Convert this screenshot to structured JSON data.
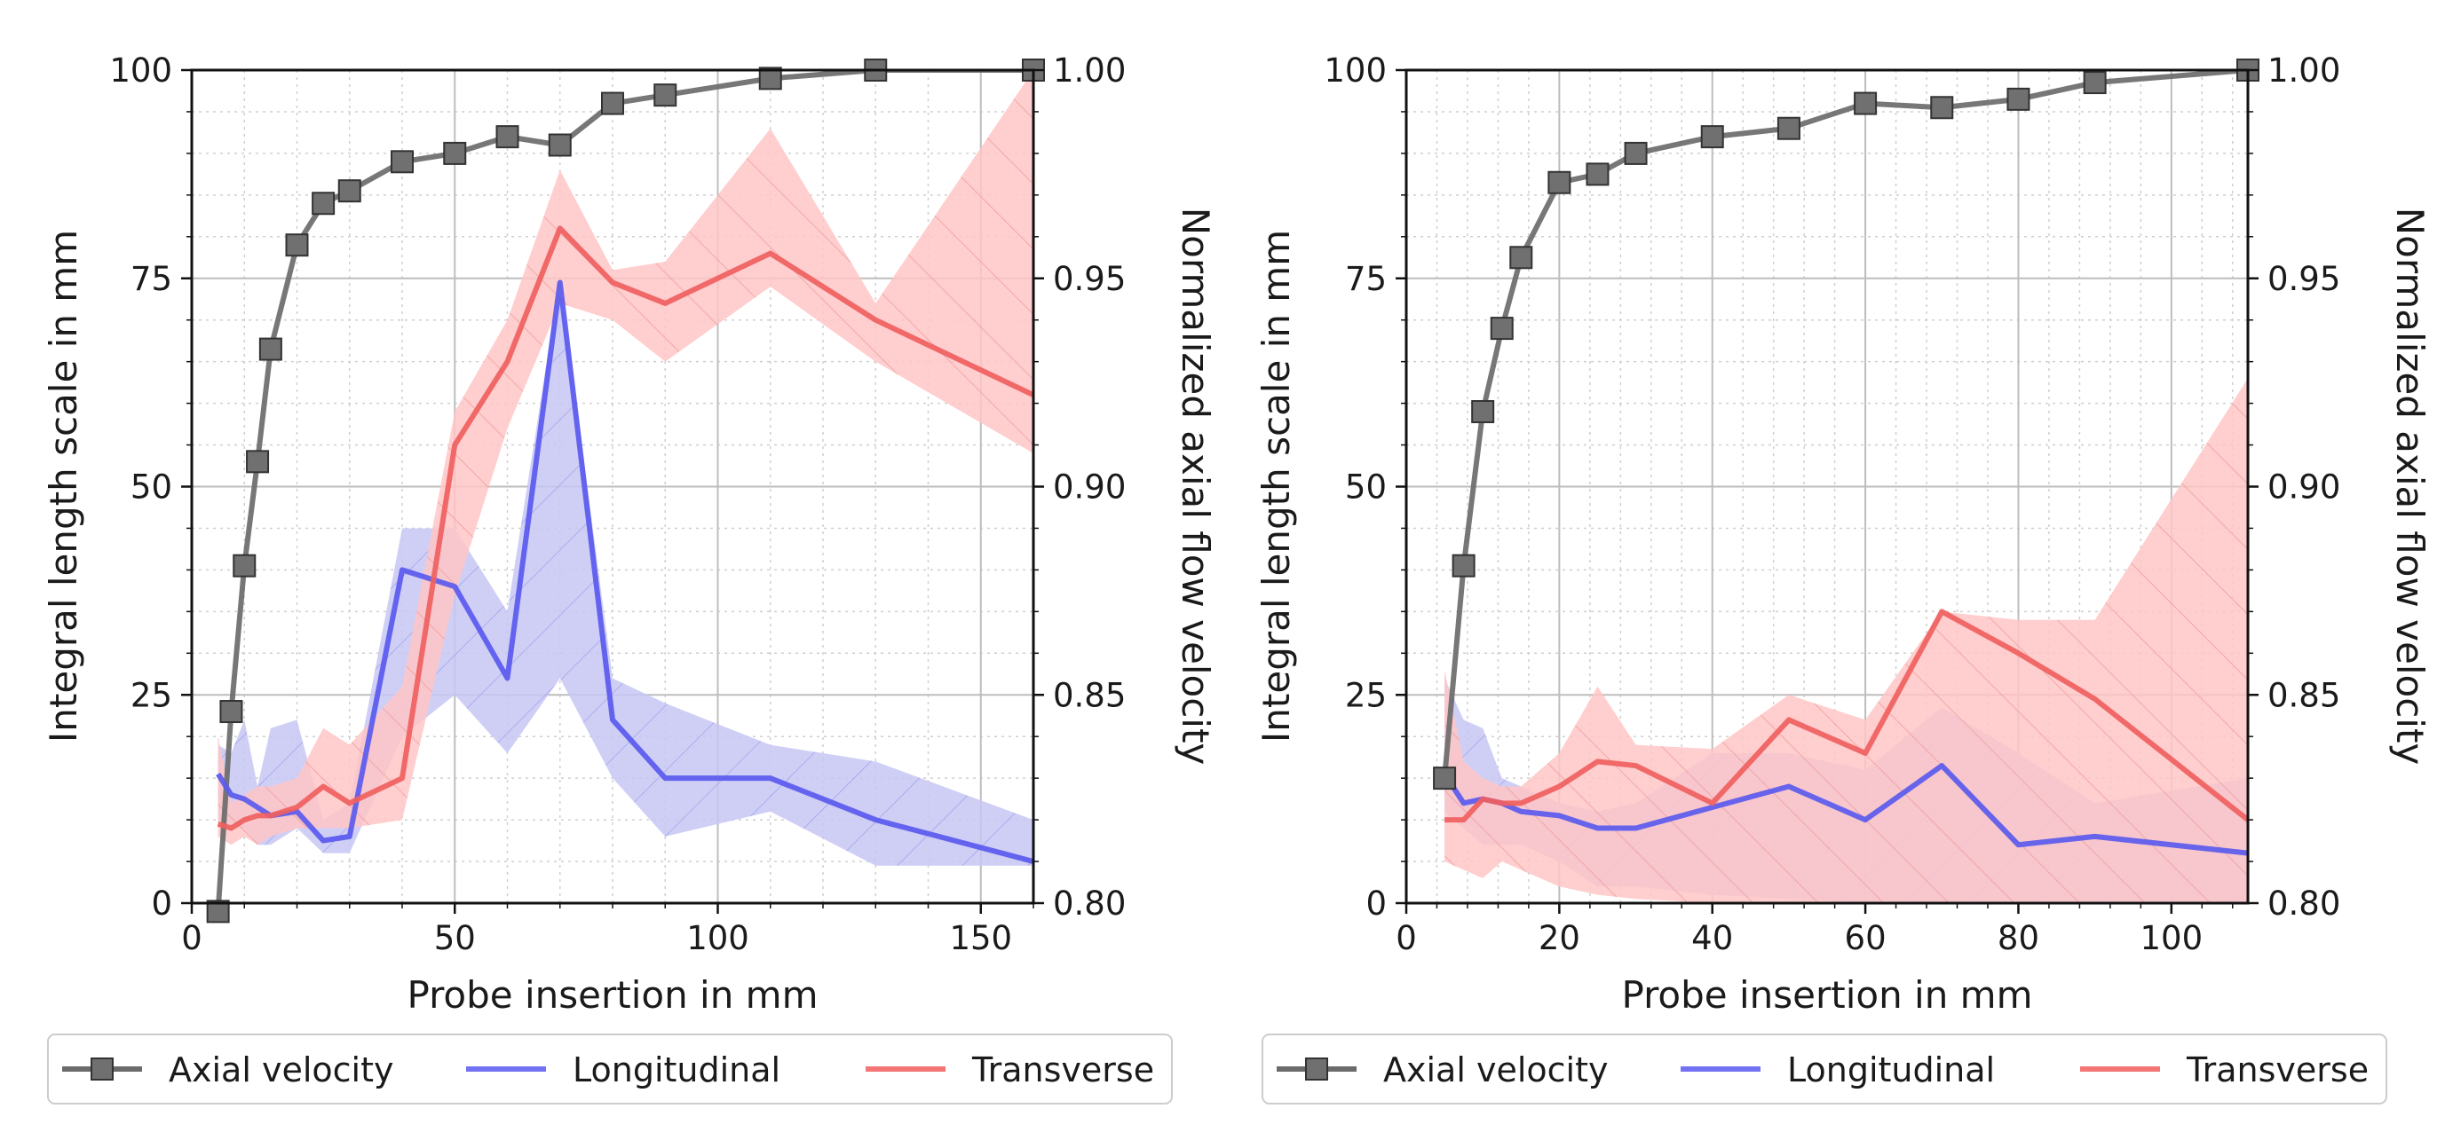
{
  "chart_data": [
    {
      "type": "line",
      "id": "left",
      "xlabel": "Probe insertion in mm",
      "ylabel": "Integral length scale in mm",
      "y2label": "Normalized axial flow velocity",
      "xlim": [
        0,
        160
      ],
      "ylim": [
        0,
        100
      ],
      "y2lim": [
        0.8,
        1.0
      ],
      "xticks": [
        "0",
        "50",
        "100",
        "150"
      ],
      "xtick_values": [
        0,
        50,
        100,
        150
      ],
      "yticks": [
        "0",
        "25",
        "50",
        "75",
        "100"
      ],
      "ytick_values": [
        0,
        25,
        50,
        75,
        100
      ],
      "y2ticks": [
        "0.80",
        "0.85",
        "0.90",
        "0.95",
        "1.00"
      ],
      "y2tick_values": [
        0.8,
        0.85,
        0.9,
        0.95,
        1.0
      ],
      "grid": true,
      "legend": {
        "placement": "bottom",
        "entries": [
          "Axial velocity",
          "Longitudinal",
          "Transverse"
        ]
      },
      "series": [
        {
          "name": "Axial velocity",
          "axis": "right",
          "color": "#6b6b6b",
          "marker": "square",
          "x": [
            5,
            7.5,
            10,
            12.5,
            15,
            20,
            25,
            30,
            40,
            50,
            60,
            70,
            80,
            90,
            110,
            130,
            160
          ],
          "y": [
            0.798,
            0.846,
            0.881,
            0.906,
            0.933,
            0.958,
            0.968,
            0.971,
            0.978,
            0.98,
            0.984,
            0.982,
            0.992,
            0.994,
            0.998,
            1.0,
            1.0
          ]
        },
        {
          "name": "Longitudinal",
          "axis": "left",
          "color": "#5a5aee",
          "band_color": "#c7c7f5",
          "x": [
            5,
            7.5,
            10,
            12.5,
            15,
            20,
            25,
            30,
            40,
            50,
            60,
            70,
            80,
            90,
            110,
            130,
            160
          ],
          "y": [
            15.5,
            13,
            12.5,
            11.5,
            10.5,
            11,
            7.5,
            8,
            40,
            38,
            27,
            74.5,
            22,
            15,
            15,
            10,
            5
          ],
          "lower": [
            10,
            9,
            9,
            7,
            7,
            9,
            6,
            6,
            20,
            25,
            18,
            27,
            15,
            8,
            11,
            4.5,
            4.5
          ],
          "upper": [
            19,
            18,
            22,
            14,
            21,
            22,
            10,
            12,
            45,
            45,
            35,
            75,
            27,
            24,
            19,
            17,
            10
          ]
        },
        {
          "name": "Transverse",
          "axis": "left",
          "color": "#f06060",
          "band_color": "#ffc5c5",
          "x": [
            5,
            7.5,
            10,
            12.5,
            15,
            20,
            25,
            30,
            40,
            50,
            60,
            70,
            80,
            90,
            110,
            130,
            160
          ],
          "y": [
            9.5,
            9,
            10,
            10.5,
            10.5,
            11.5,
            14,
            12,
            15,
            55,
            65,
            81,
            74.5,
            72,
            78,
            70,
            61
          ],
          "lower": [
            8,
            7,
            8,
            7,
            8,
            9,
            9,
            9,
            10,
            37,
            57,
            72,
            70,
            65,
            74,
            65,
            54
          ],
          "upper": [
            20,
            12,
            13,
            14,
            14,
            15,
            21,
            19,
            26,
            59,
            70,
            88,
            76,
            77,
            93,
            72,
            100
          ]
        }
      ]
    },
    {
      "type": "line",
      "id": "right",
      "xlabel": "Probe insertion in mm",
      "ylabel": "Integral length scale in mm",
      "y2label": "Normalized axial flow velocity",
      "xlim": [
        0,
        110
      ],
      "ylim": [
        0,
        100
      ],
      "y2lim": [
        0.8,
        1.0
      ],
      "xticks": [
        "0",
        "20",
        "40",
        "60",
        "80",
        "100"
      ],
      "xtick_values": [
        0,
        20,
        40,
        60,
        80,
        100
      ],
      "yticks": [
        "0",
        "25",
        "50",
        "75",
        "100"
      ],
      "ytick_values": [
        0,
        25,
        50,
        75,
        100
      ],
      "y2ticks": [
        "0.80",
        "0.85",
        "0.90",
        "0.95",
        "1.00"
      ],
      "y2tick_values": [
        0.8,
        0.85,
        0.9,
        0.95,
        1.0
      ],
      "grid": true,
      "legend": {
        "placement": "bottom",
        "entries": [
          "Axial velocity",
          "Longitudinal",
          "Transverse"
        ]
      },
      "series": [
        {
          "name": "Axial velocity",
          "axis": "right",
          "color": "#6b6b6b",
          "marker": "square",
          "x": [
            5,
            7.5,
            10,
            12.5,
            15,
            20,
            25,
            30,
            40,
            50,
            60,
            70,
            80,
            90,
            110
          ],
          "y": [
            0.83,
            0.881,
            0.918,
            0.938,
            0.955,
            0.973,
            0.975,
            0.98,
            0.984,
            0.986,
            0.992,
            0.991,
            0.993,
            0.997,
            1.0
          ]
        },
        {
          "name": "Longitudinal",
          "axis": "left",
          "color": "#5a5aee",
          "band_color": "#c7c7f5",
          "x": [
            5,
            7.5,
            10,
            12.5,
            15,
            20,
            25,
            30,
            40,
            50,
            60,
            70,
            80,
            90,
            110
          ],
          "y": [
            15.5,
            12,
            12.5,
            12,
            11,
            10.5,
            9,
            9,
            11.5,
            14,
            10,
            16.5,
            7,
            8,
            6
          ],
          "lower": [
            11,
            9,
            7,
            7,
            7,
            5,
            2,
            2,
            1,
            0.5,
            0,
            0,
            0,
            0,
            0
          ],
          "upper": [
            27,
            22,
            21,
            15,
            14,
            12,
            11,
            12,
            18,
            18,
            16,
            23.5,
            18,
            12,
            15
          ]
        },
        {
          "name": "Transverse",
          "axis": "left",
          "color": "#f06060",
          "band_color": "#ffc5c5",
          "x": [
            5,
            7.5,
            10,
            12.5,
            15,
            20,
            25,
            30,
            40,
            50,
            60,
            70,
            80,
            90,
            110
          ],
          "y": [
            10,
            10,
            12.5,
            12,
            12,
            14,
            17,
            16.5,
            12,
            22,
            18,
            35,
            30,
            24.5,
            10
          ],
          "lower": [
            5,
            4,
            3,
            5,
            4,
            2,
            1,
            0.5,
            0,
            0,
            0,
            0,
            0,
            0,
            0
          ],
          "upper": [
            28,
            17,
            15,
            14,
            14,
            18,
            26,
            19,
            18.5,
            25,
            22,
            35,
            34,
            34,
            63
          ]
        }
      ]
    }
  ]
}
